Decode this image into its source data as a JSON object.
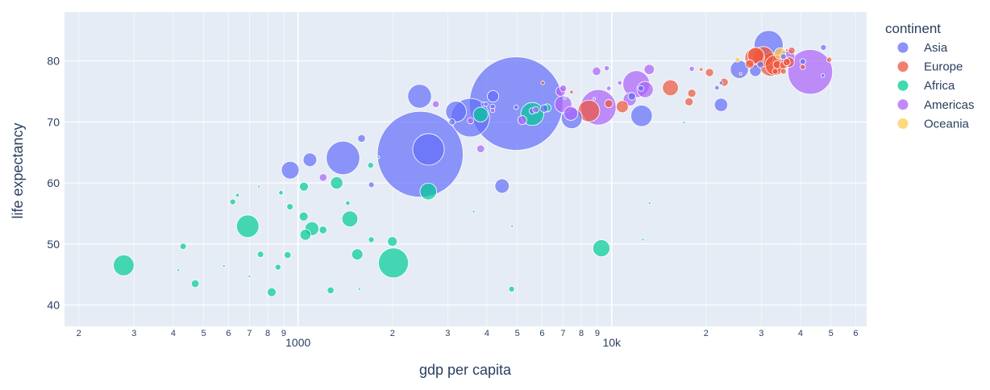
{
  "chart_data": {
    "type": "scatter",
    "xlabel": "gdp per capita",
    "ylabel": "life expectancy",
    "x_scale": "log",
    "xlim": [
      180,
      65000
    ],
    "ylim": [
      36.5,
      88
    ],
    "grid": true,
    "legend_placement": "right",
    "x_major_ticks": [
      {
        "value": 1000,
        "label": "1000"
      },
      {
        "value": 10000,
        "label": "10k"
      }
    ],
    "x_minor_ticks": [
      {
        "value": 200,
        "label": "2"
      },
      {
        "value": 300,
        "label": "3"
      },
      {
        "value": 400,
        "label": "4"
      },
      {
        "value": 500,
        "label": "5"
      },
      {
        "value": 600,
        "label": "6"
      },
      {
        "value": 700,
        "label": "7"
      },
      {
        "value": 800,
        "label": "8"
      },
      {
        "value": 900,
        "label": "9"
      },
      {
        "value": 2000,
        "label": "2"
      },
      {
        "value": 3000,
        "label": "3"
      },
      {
        "value": 4000,
        "label": "4"
      },
      {
        "value": 5000,
        "label": "5"
      },
      {
        "value": 6000,
        "label": "6"
      },
      {
        "value": 7000,
        "label": "7"
      },
      {
        "value": 8000,
        "label": "8"
      },
      {
        "value": 9000,
        "label": "9"
      },
      {
        "value": 20000,
        "label": "2"
      },
      {
        "value": 30000,
        "label": "3"
      },
      {
        "value": 40000,
        "label": "4"
      },
      {
        "value": 50000,
        "label": "5"
      },
      {
        "value": 60000,
        "label": "6"
      }
    ],
    "y_ticks": [
      40,
      50,
      60,
      70,
      80
    ],
    "legend_title": "continent",
    "series": [
      {
        "name": "Asia",
        "color": "#636efa",
        "points": [
          {
            "x": 4959,
            "y": 73.0,
            "pop": 1318
          },
          {
            "x": 2452,
            "y": 64.7,
            "pop": 1110
          },
          {
            "x": 3541,
            "y": 70.7,
            "pop": 223
          },
          {
            "x": 1391,
            "y": 64.1,
            "pop": 169
          },
          {
            "x": 2605,
            "y": 65.5,
            "pop": 150
          },
          {
            "x": 31656,
            "y": 82.6,
            "pop": 127
          },
          {
            "x": 2441,
            "y": 74.2,
            "pop": 85
          },
          {
            "x": 12452,
            "y": 71.0,
            "pop": 69
          },
          {
            "x": 3190,
            "y": 71.7,
            "pop": 65
          },
          {
            "x": 7458,
            "y": 70.6,
            "pop": 65
          },
          {
            "x": 944,
            "y": 62.1,
            "pop": 47
          },
          {
            "x": 25523,
            "y": 78.6,
            "pop": 49
          },
          {
            "x": 4471,
            "y": 59.5,
            "pop": 31
          },
          {
            "x": 1091,
            "y": 63.8,
            "pop": 28
          },
          {
            "x": 22316,
            "y": 72.8,
            "pop": 27
          },
          {
            "x": 4185,
            "y": 74.2,
            "pop": 20
          },
          {
            "x": 1594,
            "y": 67.3,
            "pop": 9
          },
          {
            "x": 5580,
            "y": 71.8,
            "pop": 6
          },
          {
            "x": 6092,
            "y": 72.2,
            "pop": 9
          },
          {
            "x": 1713,
            "y": 59.7,
            "pop": 5
          },
          {
            "x": 3096,
            "y": 70.0,
            "pop": 6
          },
          {
            "x": 4172,
            "y": 72.5,
            "pop": 4
          },
          {
            "x": 4959,
            "y": 72.4,
            "pop": 3
          },
          {
            "x": 3900,
            "y": 72.9,
            "pop": 3
          },
          {
            "x": 28718,
            "y": 78.4,
            "pop": 20
          },
          {
            "x": 47306,
            "y": 82.2,
            "pop": 5
          },
          {
            "x": 40676,
            "y": 79.9,
            "pop": 5
          },
          {
            "x": 35278,
            "y": 80.7,
            "pop": 5
          },
          {
            "x": 12400,
            "y": 75.5,
            "pop": 5
          },
          {
            "x": 11600,
            "y": 74.2,
            "pop": 9
          },
          {
            "x": 21655,
            "y": 75.6,
            "pop": 3
          },
          {
            "x": 47143,
            "y": 77.6,
            "pop": 2
          },
          {
            "x": 29796,
            "y": 79.4,
            "pop": 7
          },
          {
            "x": 22316,
            "y": 76.4,
            "pop": 2
          },
          {
            "x": 3970,
            "y": 72.9,
            "pop": 3
          }
        ]
      },
      {
        "name": "Europe",
        "color": "#ef553b",
        "points": [
          {
            "x": 32170,
            "y": 79.4,
            "pop": 82
          },
          {
            "x": 30470,
            "y": 80.7,
            "pop": 61
          },
          {
            "x": 33203,
            "y": 79.3,
            "pop": 60
          },
          {
            "x": 28570,
            "y": 80.5,
            "pop": 58
          },
          {
            "x": 8458,
            "y": 71.8,
            "pop": 71
          },
          {
            "x": 28821,
            "y": 80.9,
            "pop": 40
          },
          {
            "x": 15390,
            "y": 75.6,
            "pop": 38
          },
          {
            "x": 10808,
            "y": 72.5,
            "pop": 22
          },
          {
            "x": 36798,
            "y": 79.8,
            "pop": 16
          },
          {
            "x": 33692,
            "y": 79.4,
            "pop": 10
          },
          {
            "x": 17642,
            "y": 73.3,
            "pop": 10
          },
          {
            "x": 27538,
            "y": 79.5,
            "pop": 11
          },
          {
            "x": 20510,
            "y": 78.1,
            "pop": 10
          },
          {
            "x": 18008,
            "y": 74.7,
            "pop": 10
          },
          {
            "x": 22833,
            "y": 76.5,
            "pop": 10
          },
          {
            "x": 9787,
            "y": 73.0,
            "pop": 10
          },
          {
            "x": 35278,
            "y": 79.3,
            "pop": 9
          },
          {
            "x": 36126,
            "y": 79.8,
            "pop": 8
          },
          {
            "x": 37506,
            "y": 81.7,
            "pop": 7
          },
          {
            "x": 35278,
            "y": 78.3,
            "pop": 5
          },
          {
            "x": 33207,
            "y": 78.3,
            "pop": 5
          },
          {
            "x": 40676,
            "y": 79.0,
            "pop": 4
          },
          {
            "x": 49357,
            "y": 80.2,
            "pop": 4
          },
          {
            "x": 6025,
            "y": 76.4,
            "pop": 2
          },
          {
            "x": 7446,
            "y": 74.9,
            "pop": 2
          },
          {
            "x": 19290,
            "y": 78.6,
            "pop": 2
          },
          {
            "x": 25768,
            "y": 77.9,
            "pop": 1
          },
          {
            "x": 36181,
            "y": 81.8,
            "pop": 1
          }
        ]
      },
      {
        "name": "Africa",
        "color": "#00cc96",
        "points": [
          {
            "x": 2014,
            "y": 46.9,
            "pop": 135
          },
          {
            "x": 5581,
            "y": 71.3,
            "pop": 80
          },
          {
            "x": 691,
            "y": 52.9,
            "pop": 76
          },
          {
            "x": 278,
            "y": 46.5,
            "pop": 65
          },
          {
            "x": 9270,
            "y": 49.3,
            "pop": 44
          },
          {
            "x": 2602,
            "y": 58.6,
            "pop": 42
          },
          {
            "x": 3820,
            "y": 71.2,
            "pop": 33
          },
          {
            "x": 1463,
            "y": 54.1,
            "pop": 38
          },
          {
            "x": 1107,
            "y": 52.5,
            "pop": 29
          },
          {
            "x": 1328,
            "y": 60.0,
            "pop": 23
          },
          {
            "x": 1056,
            "y": 51.5,
            "pop": 18
          },
          {
            "x": 1545,
            "y": 48.3,
            "pop": 19
          },
          {
            "x": 1044,
            "y": 59.4,
            "pop": 12
          },
          {
            "x": 1998,
            "y": 50.4,
            "pop": 14
          },
          {
            "x": 824,
            "y": 42.1,
            "pop": 12
          },
          {
            "x": 1201,
            "y": 52.3,
            "pop": 9
          },
          {
            "x": 759,
            "y": 48.3,
            "pop": 6
          },
          {
            "x": 1270,
            "y": 42.4,
            "pop": 7
          },
          {
            "x": 470,
            "y": 43.5,
            "pop": 9
          },
          {
            "x": 430,
            "y": 49.6,
            "pop": 6
          },
          {
            "x": 1042,
            "y": 54.5,
            "pop": 12
          },
          {
            "x": 926,
            "y": 48.2,
            "pop": 7
          },
          {
            "x": 942,
            "y": 56.1,
            "pop": 6
          },
          {
            "x": 863,
            "y": 46.2,
            "pop": 5
          },
          {
            "x": 1704,
            "y": 62.9,
            "pop": 5
          },
          {
            "x": 1712,
            "y": 50.7,
            "pop": 5
          },
          {
            "x": 619,
            "y": 56.9,
            "pop": 5
          },
          {
            "x": 4797,
            "y": 42.6,
            "pop": 5
          },
          {
            "x": 1441,
            "y": 56.7,
            "pop": 3
          },
          {
            "x": 882,
            "y": 58.4,
            "pop": 3
          },
          {
            "x": 641,
            "y": 58.0,
            "pop": 2
          },
          {
            "x": 6223,
            "y": 72.3,
            "pop": 10
          },
          {
            "x": 3632,
            "y": 55.3,
            "pop": 1
          },
          {
            "x": 700,
            "y": 44.7,
            "pop": 1
          },
          {
            "x": 12570,
            "y": 50.7,
            "pop": 1
          },
          {
            "x": 13206,
            "y": 56.7,
            "pop": 1
          },
          {
            "x": 4811,
            "y": 52.9,
            "pop": 1
          },
          {
            "x": 415,
            "y": 45.7,
            "pop": 1
          },
          {
            "x": 580,
            "y": 46.4,
            "pop": 1
          },
          {
            "x": 1803,
            "y": 64.2,
            "pop": 1
          },
          {
            "x": 1568,
            "y": 42.6,
            "pop": 1
          },
          {
            "x": 750,
            "y": 59.4,
            "pop": 1
          },
          {
            "x": 7093,
            "y": 73.9,
            "pop": 1
          },
          {
            "x": 17000,
            "y": 69.9,
            "pop": 1
          }
        ]
      },
      {
        "name": "Americas",
        "color": "#ab63fa",
        "points": [
          {
            "x": 42952,
            "y": 78.2,
            "pop": 301
          },
          {
            "x": 9066,
            "y": 72.4,
            "pop": 190
          },
          {
            "x": 11978,
            "y": 76.2,
            "pop": 109
          },
          {
            "x": 7007,
            "y": 72.9,
            "pop": 44
          },
          {
            "x": 12779,
            "y": 75.3,
            "pop": 40
          },
          {
            "x": 36319,
            "y": 80.7,
            "pop": 33
          },
          {
            "x": 7409,
            "y": 71.4,
            "pop": 29
          },
          {
            "x": 11416,
            "y": 73.7,
            "pop": 26
          },
          {
            "x": 13172,
            "y": 78.6,
            "pop": 16
          },
          {
            "x": 6873,
            "y": 75.0,
            "pop": 14
          },
          {
            "x": 5186,
            "y": 70.3,
            "pop": 12
          },
          {
            "x": 3822,
            "y": 65.6,
            "pop": 9
          },
          {
            "x": 8948,
            "y": 78.3,
            "pop": 11
          },
          {
            "x": 1202,
            "y": 60.9,
            "pop": 9
          },
          {
            "x": 2749,
            "y": 72.9,
            "pop": 7
          },
          {
            "x": 9646,
            "y": 78.8,
            "pop": 4
          },
          {
            "x": 7006,
            "y": 75.5,
            "pop": 7
          },
          {
            "x": 5728,
            "y": 72.0,
            "pop": 6
          },
          {
            "x": 10611,
            "y": 76.4,
            "pop": 3
          },
          {
            "x": 4172,
            "y": 71.9,
            "pop": 3
          },
          {
            "x": 18009,
            "y": 78.7,
            "pop": 4
          },
          {
            "x": 9786,
            "y": 75.5,
            "pop": 3
          },
          {
            "x": 3548,
            "y": 70.2,
            "pop": 6
          },
          {
            "x": 8800,
            "y": 73.8,
            "pop": 1
          }
        ]
      },
      {
        "name": "Oceania",
        "color": "#fecb52",
        "points": [
          {
            "x": 34435,
            "y": 81.2,
            "pop": 20
          },
          {
            "x": 25185,
            "y": 80.2,
            "pop": 4
          }
        ]
      }
    ],
    "legend_items": [
      {
        "name": "Asia",
        "color": "#636efa"
      },
      {
        "name": "Europe",
        "color": "#ef553b"
      },
      {
        "name": "Africa",
        "color": "#00cc96"
      },
      {
        "name": "Americas",
        "color": "#ab63fa"
      },
      {
        "name": "Oceania",
        "color": "#fecb52"
      }
    ]
  }
}
